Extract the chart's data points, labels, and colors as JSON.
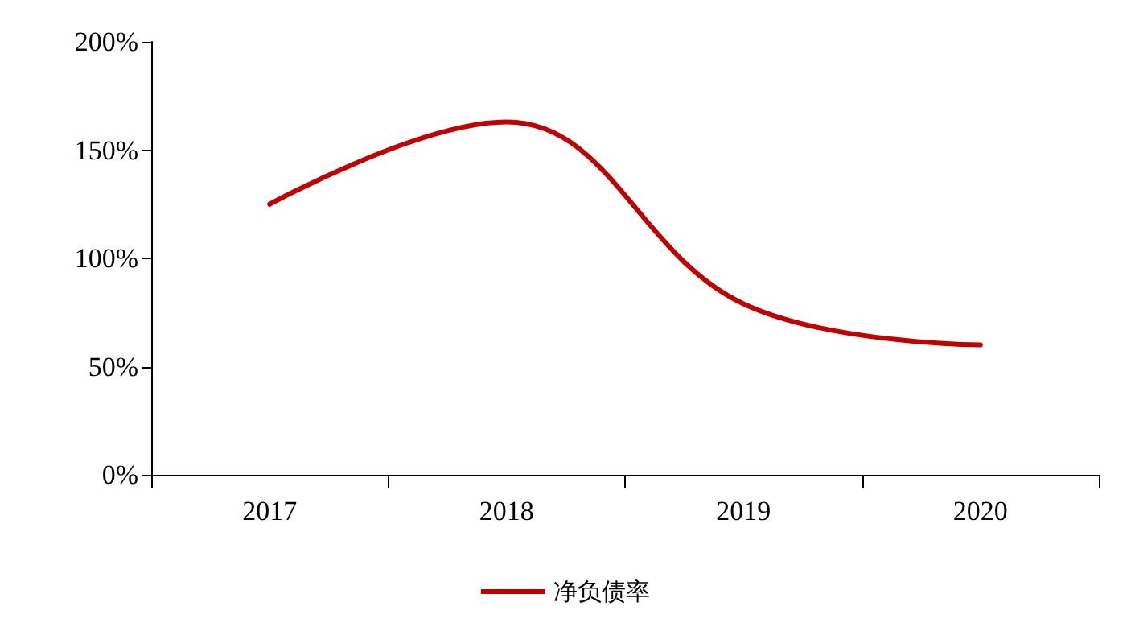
{
  "chart_data": {
    "type": "line",
    "categories": [
      "2017",
      "2018",
      "2019",
      "2020"
    ],
    "series": [
      {
        "name": "净负债率",
        "color": "#c00000",
        "values": [
          125,
          163,
          79,
          60
        ]
      }
    ],
    "ylim": [
      0,
      200
    ],
    "yticks": [
      {
        "value": 0,
        "label": "0%"
      },
      {
        "value": 50,
        "label": "50%"
      },
      {
        "value": 100,
        "label": "100%"
      },
      {
        "value": 150,
        "label": "150%"
      },
      {
        "value": 200,
        "label": "200%"
      }
    ],
    "grid": false,
    "legend": "bottom",
    "marker": "none",
    "line_style": "solid"
  }
}
